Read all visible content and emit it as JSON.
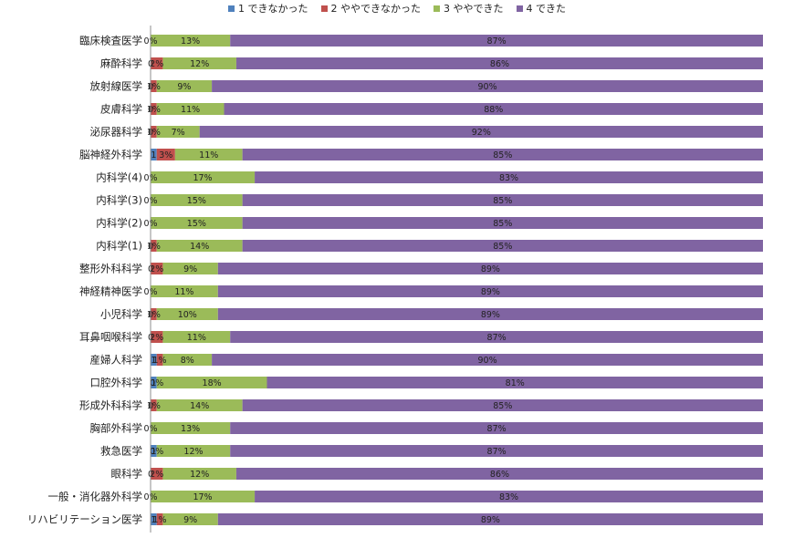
{
  "legend": [
    {
      "label": "1 できなかった",
      "color": "#4F81BD"
    },
    {
      "label": "2 ややできなかった",
      "color": "#C0504D"
    },
    {
      "label": "3 ややできた",
      "color": "#9BBB59"
    },
    {
      "label": "4 できた",
      "color": "#8064A2"
    }
  ],
  "chart_data": {
    "type": "bar",
    "orientation": "horizontal",
    "stacked": true,
    "percent_stacked": true,
    "xlim": [
      0,
      100
    ],
    "grid": false,
    "legend_position": "top",
    "categories": [
      "臨床検査医学",
      "麻酔科学",
      "放射線医学",
      "皮膚科学",
      "泌尿器科学",
      "脳神経外科学",
      "内科学(4)",
      "内科学(3)",
      "内科学(2)",
      "内科学(1)",
      "整形外科科学",
      "神経精神医学",
      "小児科学",
      "耳鼻咽喉科学",
      "産婦人科学",
      "口腔外科学",
      "形成外科科学",
      "胸部外科学",
      "救急医学",
      "眼科学",
      "一般・消化器外科学",
      "リハビリテーション医学"
    ],
    "series": [
      {
        "name": "1 できなかった",
        "color": "#4F81BD",
        "values": [
          0,
          0,
          0,
          0,
          0,
          1,
          0,
          0,
          0,
          0,
          0,
          0,
          0,
          0,
          1,
          1,
          0,
          0,
          1,
          0,
          0,
          1
        ]
      },
      {
        "name": "2 ややできなかった",
        "color": "#C0504D",
        "values": [
          0,
          2,
          1,
          1,
          1,
          3,
          0,
          0,
          0,
          1,
          2,
          0,
          1,
          2,
          1,
          0,
          1,
          0,
          0,
          2,
          0,
          1
        ]
      },
      {
        "name": "3 ややできた",
        "color": "#9BBB59",
        "values": [
          13,
          12,
          9,
          11,
          7,
          11,
          17,
          15,
          15,
          14,
          9,
          11,
          10,
          11,
          8,
          18,
          14,
          13,
          12,
          12,
          17,
          9
        ]
      },
      {
        "name": "4 できた",
        "color": "#8064A2",
        "values": [
          87,
          86,
          90,
          88,
          92,
          85,
          83,
          85,
          85,
          85,
          89,
          89,
          89,
          87,
          90,
          81,
          85,
          87,
          87,
          86,
          83,
          89
        ]
      }
    ],
    "data_labels": [
      [
        "0%",
        "",
        "13%",
        "87%"
      ],
      [
        "0",
        "2%",
        "12%",
        "86%"
      ],
      [
        "0",
        "1%",
        "9%",
        "90%"
      ],
      [
        "0",
        "1%",
        "11%",
        "88%"
      ],
      [
        "0",
        "1%",
        "7%",
        "92%"
      ],
      [
        "1",
        "3%",
        "11%",
        "85%"
      ],
      [
        "0%",
        "",
        "17%",
        "83%"
      ],
      [
        "0%",
        "",
        "15%",
        "85%"
      ],
      [
        "0%",
        "",
        "15%",
        "85%"
      ],
      [
        "0",
        "1%",
        "14%",
        "85%"
      ],
      [
        "0",
        "2%",
        "9%",
        "89%"
      ],
      [
        "0%",
        "",
        "11%",
        "89%"
      ],
      [
        "0",
        "1%",
        "10%",
        "89%"
      ],
      [
        "0",
        "2%",
        "11%",
        "87%"
      ],
      [
        "1",
        "1%",
        "8%",
        "90%"
      ],
      [
        "1",
        "0%",
        "18%",
        "81%"
      ],
      [
        "0",
        "1%",
        "14%",
        "85%"
      ],
      [
        "0%",
        "",
        "13%",
        "87%"
      ],
      [
        "1",
        "0%",
        "12%",
        "87%"
      ],
      [
        "0",
        "2%",
        "12%",
        "86%"
      ],
      [
        "0%",
        "",
        "17%",
        "83%"
      ],
      [
        "1",
        "1%",
        "9%",
        "89%"
      ]
    ]
  }
}
